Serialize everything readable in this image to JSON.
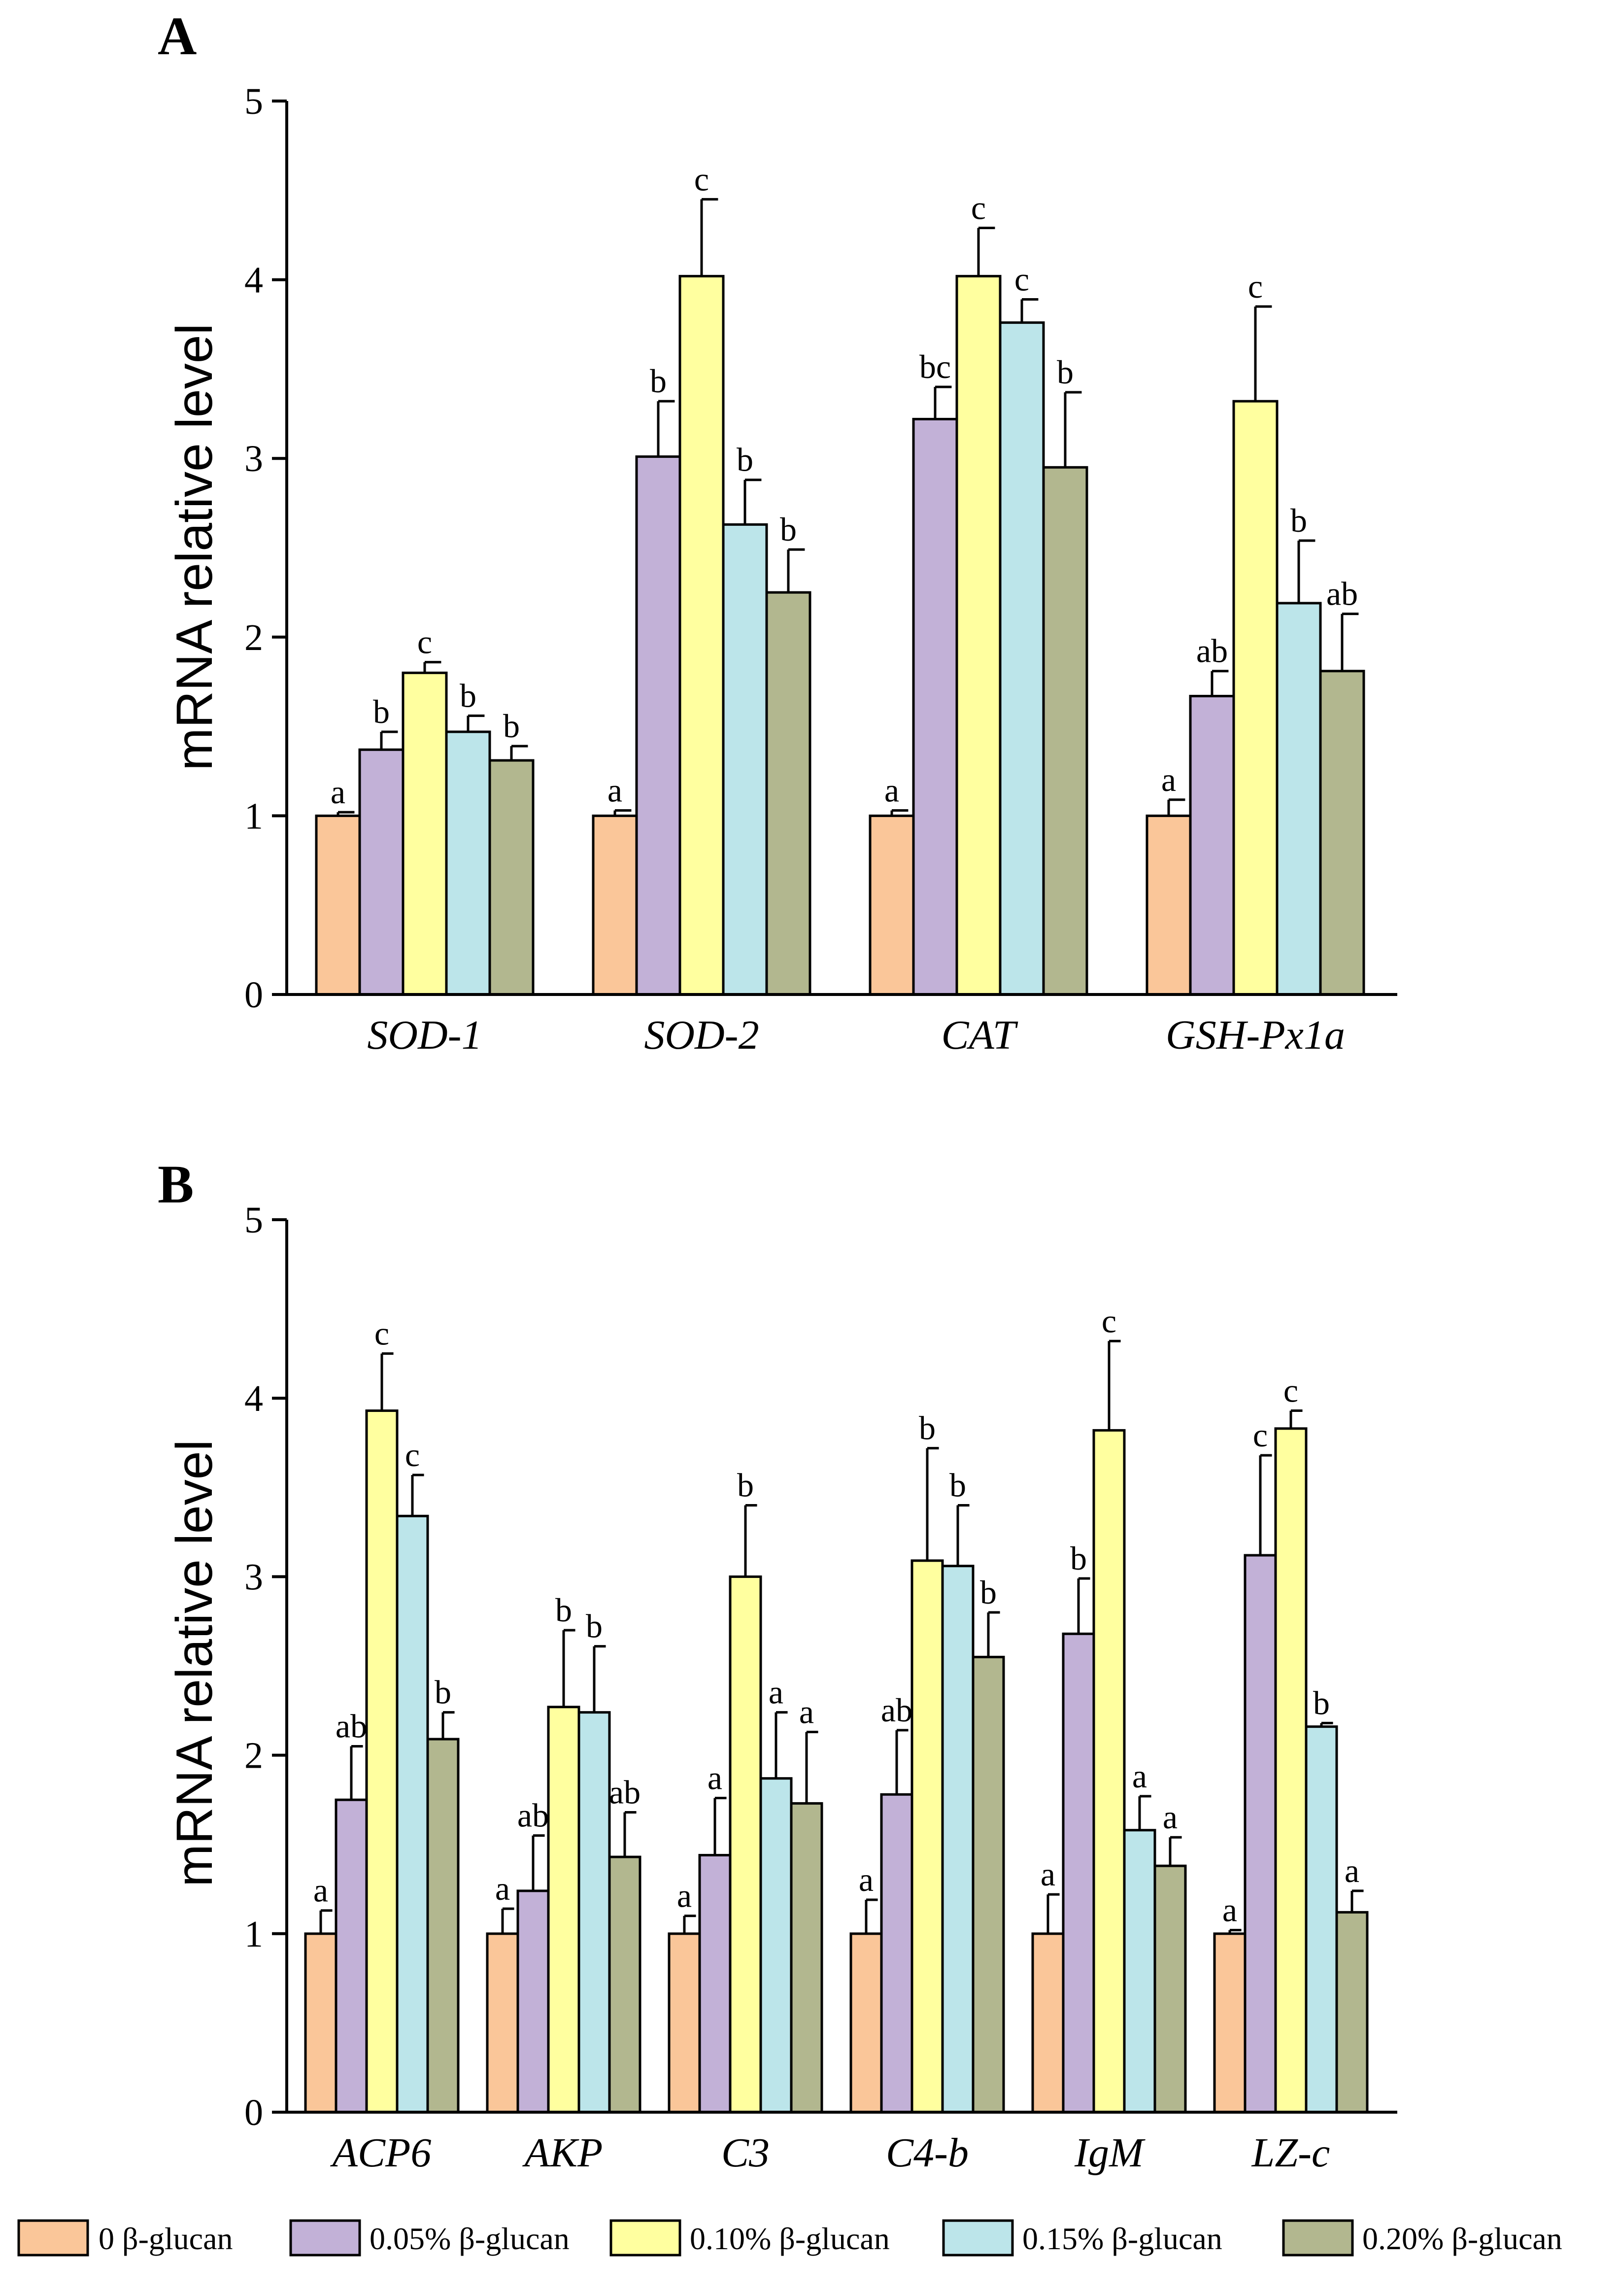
{
  "legend": [
    {
      "label": "0 β-glucan",
      "color": "#FAC699"
    },
    {
      "label": "0.05% β-glucan",
      "color": "#C2B1D7"
    },
    {
      "label": "0.10% β-glucan",
      "color": "#FFFF9F"
    },
    {
      "label": "0.15% β-glucan",
      "color": "#BCE5EA"
    },
    {
      "label": "0.20% β-glucan",
      "color": "#B2B78F"
    }
  ],
  "chart_data": [
    {
      "panel": "A",
      "type": "bar",
      "ylabel": "mRNA relative level",
      "ylim": [
        0,
        5
      ],
      "yticks": [
        0,
        1,
        2,
        3,
        4,
        5
      ],
      "categories": [
        "SOD-1",
        "SOD-2",
        "CAT",
        "GSH-Px1a"
      ],
      "series": [
        {
          "name": "0 β-glucan",
          "values": [
            1.0,
            1.0,
            1.0,
            1.0
          ],
          "errors": [
            0.02,
            0.03,
            0.03,
            0.09
          ],
          "letters": [
            "a",
            "a",
            "a",
            "a"
          ]
        },
        {
          "name": "0.05% β-glucan",
          "values": [
            1.37,
            3.01,
            3.22,
            1.67
          ],
          "errors": [
            0.1,
            0.31,
            0.18,
            0.14
          ],
          "letters": [
            "b",
            "b",
            "bc",
            "ab"
          ]
        },
        {
          "name": "0.10% β-glucan",
          "values": [
            1.8,
            4.02,
            4.02,
            3.32
          ],
          "errors": [
            0.06,
            0.43,
            0.27,
            0.53
          ],
          "letters": [
            "c",
            "c",
            "c",
            "c"
          ]
        },
        {
          "name": "0.15% β-glucan",
          "values": [
            1.47,
            2.63,
            3.76,
            2.19
          ],
          "errors": [
            0.09,
            0.25,
            0.13,
            0.35
          ],
          "letters": [
            "b",
            "b",
            "c",
            "b"
          ]
        },
        {
          "name": "0.20% β-glucan",
          "values": [
            1.31,
            2.25,
            2.95,
            1.81
          ],
          "errors": [
            0.08,
            0.24,
            0.42,
            0.32
          ],
          "letters": [
            "b",
            "b",
            "b",
            "ab"
          ]
        }
      ]
    },
    {
      "panel": "B",
      "type": "bar",
      "ylabel": "mRNA relative level",
      "ylim": [
        0,
        5
      ],
      "yticks": [
        0,
        1,
        2,
        3,
        4,
        5
      ],
      "categories": [
        "ACP6",
        "AKP",
        "C3",
        "C4-b",
        "IgM",
        "LZ-c"
      ],
      "series": [
        {
          "name": "0 β-glucan",
          "values": [
            1.0,
            1.0,
            1.0,
            1.0,
            1.0,
            1.0
          ],
          "errors": [
            0.13,
            0.14,
            0.1,
            0.19,
            0.22,
            0.02
          ],
          "letters": [
            "a",
            "a",
            "a",
            "a",
            "a",
            "a"
          ]
        },
        {
          "name": "0.05% β-glucan",
          "values": [
            1.75,
            1.24,
            1.44,
            1.78,
            2.68,
            3.12
          ],
          "errors": [
            0.3,
            0.31,
            0.32,
            0.36,
            0.31,
            0.56
          ],
          "letters": [
            "ab",
            "ab",
            "a",
            "ab",
            "b",
            "c"
          ]
        },
        {
          "name": "0.10% β-glucan",
          "values": [
            3.93,
            2.27,
            3.0,
            3.09,
            3.82,
            3.83
          ],
          "errors": [
            0.32,
            0.43,
            0.4,
            0.63,
            0.5,
            0.1
          ],
          "letters": [
            "c",
            "b",
            "b",
            "b",
            "c",
            "c"
          ]
        },
        {
          "name": "0.15% β-glucan",
          "values": [
            3.34,
            2.24,
            1.87,
            3.06,
            1.58,
            2.16
          ],
          "errors": [
            0.23,
            0.37,
            0.37,
            0.34,
            0.19,
            0.02
          ],
          "letters": [
            "c",
            "b",
            "a",
            "b",
            "a",
            "b"
          ]
        },
        {
          "name": "0.20% β-glucan",
          "values": [
            2.09,
            1.43,
            1.73,
            2.55,
            1.38,
            1.12
          ],
          "errors": [
            0.15,
            0.25,
            0.4,
            0.25,
            0.16,
            0.12
          ],
          "letters": [
            "b",
            "ab",
            "a",
            "b",
            "a",
            "a"
          ]
        }
      ]
    }
  ]
}
